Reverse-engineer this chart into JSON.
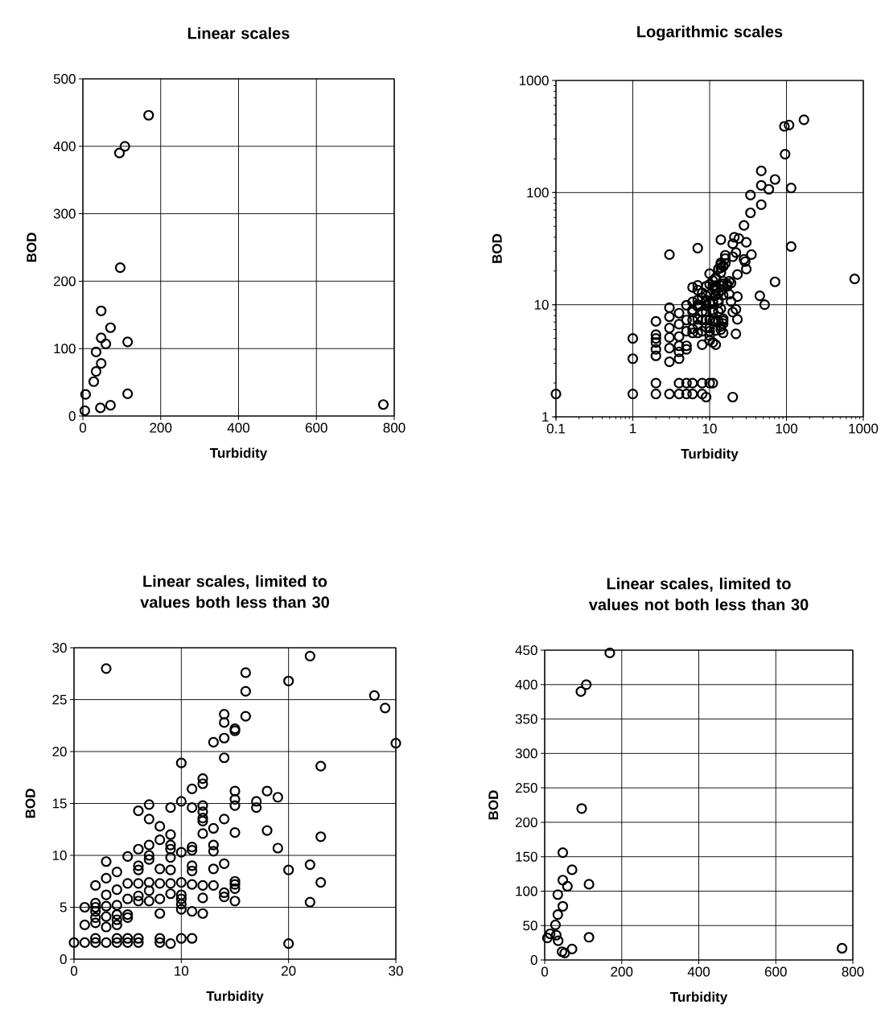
{
  "chart_data": [
    {
      "type": "scatter",
      "title": "Linear scales",
      "xlabel": "Turbidity",
      "ylabel": "BOD",
      "color": "#000000",
      "marker": "circle",
      "grid": true,
      "x": [
        5,
        169,
        108,
        94,
        96,
        47,
        71,
        47,
        59,
        115,
        34,
        47,
        34,
        28,
        7,
        115,
        45,
        71,
        772
      ],
      "values": [
        8,
        446,
        400,
        390,
        220,
        156,
        131,
        116,
        107,
        110,
        95,
        78,
        66,
        51,
        32,
        33,
        12,
        16,
        17
      ],
      "xlim": [
        0,
        800
      ],
      "ylim": [
        0,
        500
      ],
      "xticks": [
        0,
        200,
        400,
        600,
        800
      ],
      "yticks": [
        0,
        100,
        200,
        300,
        400,
        500
      ]
    },
    {
      "type": "scatter",
      "title": "Logarithmic scales",
      "xlabel": "Turbidity",
      "ylabel": "BOD",
      "color": "#000000",
      "marker": "circle",
      "grid": true,
      "log": "xy",
      "x": [
        3,
        20,
        22,
        28,
        29,
        30,
        16,
        16,
        16,
        14,
        14,
        15,
        15,
        13,
        14,
        14,
        10,
        23,
        12,
        12,
        11,
        15,
        15,
        15,
        17,
        17,
        18,
        19,
        10,
        11,
        12,
        12,
        12,
        12,
        9,
        7,
        6,
        7,
        8,
        9,
        13,
        14,
        15,
        18,
        19,
        23,
        12,
        8,
        9,
        9,
        7,
        6,
        7,
        7,
        5,
        3,
        10,
        11,
        11,
        13,
        13,
        14,
        11,
        11,
        13,
        6,
        6,
        4,
        3,
        2,
        8,
        9,
        9,
        20,
        22,
        23,
        22,
        20,
        15,
        15,
        15,
        14,
        14,
        15,
        13,
        12,
        11,
        10,
        10,
        10,
        10,
        10,
        11,
        12,
        12,
        9,
        9,
        8,
        8,
        8,
        7,
        7,
        7,
        6,
        6,
        6,
        5,
        5,
        5,
        4,
        4,
        4,
        4,
        3,
        3,
        3,
        3,
        2,
        2,
        2,
        2,
        1,
        1,
        0.1,
        1,
        2,
        2,
        3,
        4,
        4,
        5,
        5,
        6,
        6,
        8,
        8,
        9,
        10,
        11,
        4,
        5,
        2,
        169,
        108,
        94,
        96,
        47,
        71,
        47,
        59,
        115,
        34,
        47,
        34,
        28,
        21,
        7,
        35,
        115,
        45,
        52,
        71,
        772,
        14,
        20,
        24,
        30
      ],
      "values": [
        28,
        26.8,
        29.2,
        25.4,
        24.2,
        20.8,
        27.6,
        25.8,
        23.4,
        23.6,
        22.8,
        22.2,
        22,
        20.9,
        21.3,
        19.4,
        18.9,
        18.6,
        17.4,
        16.9,
        16.4,
        16.2,
        15.4,
        14.8,
        15.2,
        14.6,
        16.2,
        15.6,
        15.2,
        14.6,
        14.8,
        14.2,
        13.6,
        13.3,
        14.6,
        14.9,
        14.3,
        13.5,
        12.8,
        12,
        12.6,
        13.5,
        12.2,
        12.4,
        10.7,
        11.8,
        12.1,
        11.5,
        11,
        10.6,
        11,
        10.6,
        9.6,
        10,
        9.9,
        9.4,
        10.3,
        10.8,
        10.5,
        11,
        10.4,
        9.2,
        9,
        8.5,
        8.7,
        8.6,
        9,
        8.4,
        7.8,
        7.1,
        8.7,
        8.6,
        9.8,
        8.6,
        9.1,
        7.4,
        5.5,
        1.5,
        7.5,
        7.2,
        6.8,
        6.4,
        6,
        5.6,
        7.1,
        7.1,
        7.2,
        7.4,
        6.2,
        5.8,
        5.3,
        4.8,
        4.6,
        4.4,
        5.9,
        7.3,
        6.3,
        7.3,
        5.8,
        4.4,
        7.4,
        6.6,
        5.6,
        7.3,
        6.1,
        5.6,
        7.3,
        5.8,
        4.3,
        6.7,
        5.2,
        4.3,
        3.3,
        6.2,
        5.1,
        4.1,
        3.1,
        5.4,
        4.6,
        4,
        3.5,
        5,
        3.3,
        1.6,
        1.6,
        1.6,
        2,
        1.6,
        1.6,
        2,
        1.6,
        2,
        1.6,
        2,
        1.6,
        2,
        1.5,
        2,
        2,
        3.8,
        4,
        5,
        446,
        400,
        390,
        220,
        156,
        131,
        116,
        107,
        110,
        95,
        78,
        66,
        51,
        40,
        32,
        28,
        33,
        12,
        10,
        16,
        17,
        38,
        35,
        39,
        36
      ],
      "xlim": [
        0.1,
        1000
      ],
      "ylim": [
        1,
        1000
      ],
      "xticks": [
        0.1,
        1,
        10,
        100,
        1000
      ],
      "yticks": [
        1,
        10,
        100,
        1000
      ]
    },
    {
      "type": "scatter",
      "title": "Linear scales, limited to values both less than 30",
      "xlabel": "Turbidity",
      "ylabel": "BOD",
      "color": "#000000",
      "marker": "circle",
      "grid": true,
      "x": [
        3,
        20,
        22,
        28,
        29,
        30,
        16,
        16,
        16,
        14,
        14,
        15,
        15,
        13,
        14,
        14,
        10,
        23,
        12,
        12,
        11,
        15,
        15,
        15,
        17,
        17,
        18,
        19,
        10,
        11,
        12,
        12,
        12,
        12,
        9,
        7,
        6,
        7,
        8,
        9,
        13,
        14,
        15,
        18,
        19,
        23,
        12,
        8,
        9,
        9,
        7,
        6,
        7,
        7,
        5,
        3,
        10,
        11,
        11,
        13,
        13,
        14,
        11,
        11,
        13,
        6,
        6,
        4,
        3,
        2,
        8,
        9,
        9,
        20,
        22,
        23,
        22,
        20,
        15,
        15,
        15,
        14,
        14,
        15,
        13,
        12,
        11,
        10,
        10,
        10,
        10,
        10,
        11,
        12,
        12,
        9,
        9,
        8,
        8,
        8,
        7,
        7,
        7,
        6,
        6,
        6,
        5,
        5,
        5,
        4,
        4,
        4,
        4,
        3,
        3,
        3,
        3,
        2,
        2,
        2,
        2,
        1,
        1,
        0,
        1,
        2,
        2,
        3,
        4,
        4,
        5,
        5,
        6,
        6,
        8,
        8,
        9,
        10,
        11,
        4,
        5,
        2
      ],
      "values": [
        28,
        26.8,
        29.2,
        25.4,
        24.2,
        20.8,
        27.6,
        25.8,
        23.4,
        23.6,
        22.8,
        22.2,
        22,
        20.9,
        21.3,
        19.4,
        18.9,
        18.6,
        17.4,
        16.9,
        16.4,
        16.2,
        15.4,
        14.8,
        15.2,
        14.6,
        16.2,
        15.6,
        15.2,
        14.6,
        14.8,
        14.2,
        13.6,
        13.3,
        14.6,
        14.9,
        14.3,
        13.5,
        12.8,
        12,
        12.6,
        13.5,
        12.2,
        12.4,
        10.7,
        11.8,
        12.1,
        11.5,
        11,
        10.6,
        11,
        10.6,
        9.6,
        10,
        9.9,
        9.4,
        10.3,
        10.8,
        10.5,
        11,
        10.4,
        9.2,
        9,
        8.5,
        8.7,
        8.6,
        9,
        8.4,
        7.8,
        7.1,
        8.7,
        8.6,
        9.8,
        8.6,
        9.1,
        7.4,
        5.5,
        1.5,
        7.5,
        7.2,
        6.8,
        6.4,
        6,
        5.6,
        7.1,
        7.1,
        7.2,
        7.4,
        6.2,
        5.8,
        5.3,
        4.8,
        4.6,
        4.4,
        5.9,
        7.3,
        6.3,
        7.3,
        5.8,
        4.4,
        7.4,
        6.6,
        5.6,
        7.3,
        6.1,
        5.6,
        7.3,
        5.8,
        4.3,
        6.7,
        5.2,
        4.3,
        3.3,
        6.2,
        5.1,
        4.1,
        3.1,
        5.4,
        4.6,
        4,
        3.5,
        5,
        3.3,
        1.6,
        1.6,
        1.6,
        2,
        1.6,
        1.6,
        2,
        1.6,
        2,
        1.6,
        2,
        1.6,
        2,
        1.5,
        2,
        2,
        3.8,
        4,
        5
      ],
      "xlim": [
        0,
        30
      ],
      "ylim": [
        0,
        30
      ],
      "xticks": [
        0,
        10,
        20,
        30
      ],
      "yticks": [
        0,
        5,
        10,
        15,
        20,
        25,
        30
      ]
    },
    {
      "type": "scatter",
      "title": "Linear scales, limited to values not both less than 30",
      "xlabel": "Turbidity",
      "ylabel": "BOD",
      "color": "#000000",
      "marker": "circle",
      "grid": true,
      "x": [
        169,
        108,
        94,
        96,
        47,
        71,
        47,
        59,
        115,
        34,
        47,
        34,
        28,
        7,
        35,
        115,
        45,
        52,
        71,
        772,
        14,
        30
      ],
      "values": [
        446,
        400,
        390,
        220,
        156,
        131,
        116,
        107,
        110,
        95,
        78,
        66,
        51,
        32,
        28,
        33,
        12,
        10,
        16,
        17,
        38,
        36
      ],
      "xlim": [
        0,
        800
      ],
      "ylim": [
        0,
        450
      ],
      "xticks": [
        0,
        200,
        400,
        600,
        800
      ],
      "yticks": [
        0,
        50,
        100,
        150,
        200,
        250,
        300,
        350,
        400,
        450
      ]
    }
  ]
}
